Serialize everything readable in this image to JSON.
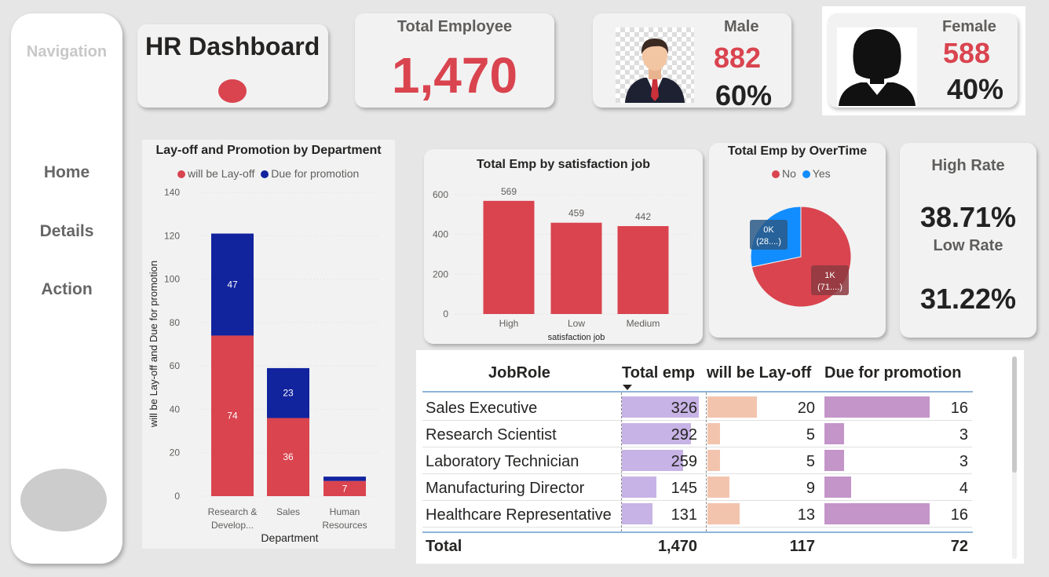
{
  "nav": {
    "title": "Navigation",
    "items": [
      "Home",
      "Details",
      "Action"
    ]
  },
  "header": {
    "title": "HR Dashboard"
  },
  "kpis": {
    "total": {
      "label": "Total Employee",
      "value": "1,470"
    },
    "male": {
      "label": "Male",
      "value": "882",
      "pct": "60%"
    },
    "female": {
      "label": "Female",
      "value": "588",
      "pct": "40%"
    },
    "rates": {
      "high_label": "High Rate",
      "high_value": "38.71%",
      "low_label": "Low Rate",
      "low_value": "31.22%"
    }
  },
  "colors": {
    "red": "#d9444f",
    "navy": "#12239e",
    "blue": "#118dff",
    "purple": "#c7b3e5",
    "peach": "#f2c4ae",
    "mauve": "#c495c9"
  },
  "chart_data": [
    {
      "type": "bar",
      "stacked": true,
      "title": "Lay-off and Promotion by Department",
      "categories": [
        "Research & Develop...",
        "Sales",
        "Human Resources"
      ],
      "series": [
        {
          "name": "will be Lay-off",
          "values": [
            74,
            36,
            7
          ]
        },
        {
          "name": "Due for promotion",
          "values": [
            47,
            23,
            2
          ]
        }
      ],
      "xlabel": "Department",
      "ylabel": "will be Lay-off and Due for promotion",
      "ylim": [
        0,
        140
      ],
      "yticks": [
        0,
        20,
        40,
        60,
        80,
        100,
        120,
        140
      ],
      "legend": "top",
      "data_labels": [
        "74",
        "36",
        "7",
        "47",
        "23",
        ""
      ]
    },
    {
      "type": "bar",
      "title": "Total Emp by satisfaction job",
      "categories": [
        "High",
        "Low",
        "Medium"
      ],
      "values": [
        569,
        459,
        442
      ],
      "xlabel": "satisfaction job",
      "ylim": [
        0,
        600
      ],
      "yticks": [
        0,
        200,
        400,
        600
      ]
    },
    {
      "type": "pie",
      "title": "Total Emp by OverTime",
      "categories": [
        "No",
        "Yes"
      ],
      "values": [
        1054,
        416
      ],
      "labels": [
        [
          "1K",
          "(71....)"
        ],
        [
          "0K",
          "(28....)"
        ]
      ],
      "legend": "top"
    },
    {
      "type": "table",
      "columns": [
        "JobRole",
        "Total emp",
        "will be Lay-off",
        "Due for promotion"
      ],
      "rows": [
        {
          "role": "Sales Executive",
          "total": 326,
          "layoff": 20,
          "promo": 16
        },
        {
          "role": "Research Scientist",
          "total": 292,
          "layoff": 5,
          "promo": 3
        },
        {
          "role": "Laboratory Technician",
          "total": 259,
          "layoff": 5,
          "promo": 3
        },
        {
          "role": "Manufacturing Director",
          "total": 145,
          "layoff": 9,
          "promo": 4
        },
        {
          "role": "Healthcare Representative",
          "total": 131,
          "layoff": 13,
          "promo": 16
        }
      ],
      "totals": {
        "label": "Total",
        "total": "1,470",
        "layoff": "117",
        "promo": "72"
      }
    }
  ]
}
